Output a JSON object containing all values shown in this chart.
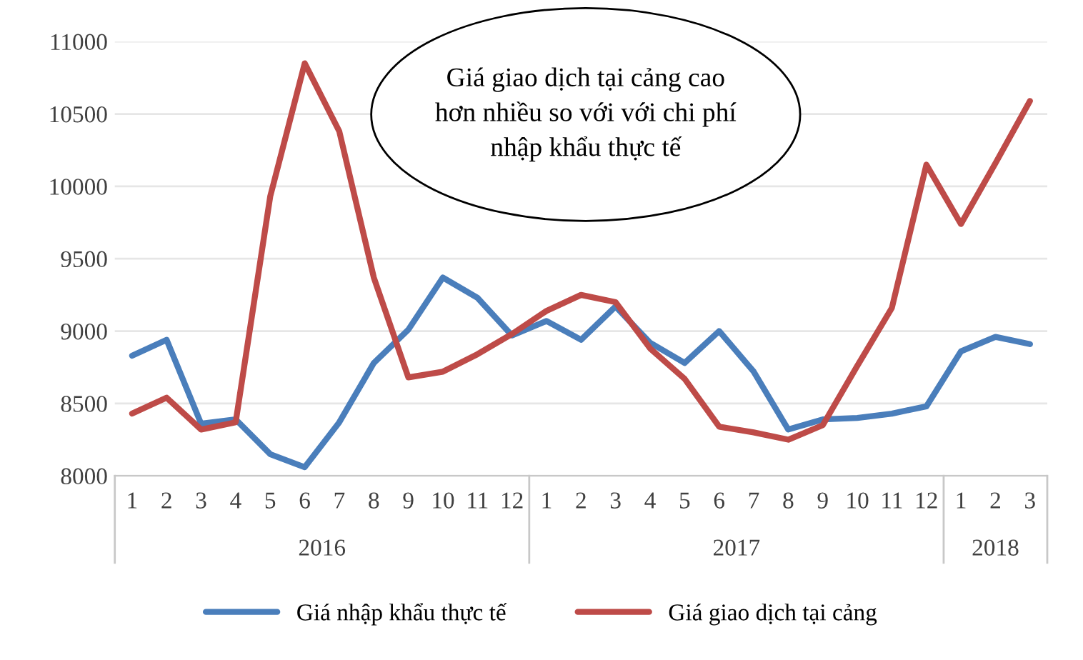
{
  "chart_data": {
    "type": "line",
    "categories": [
      "1",
      "2",
      "3",
      "4",
      "5",
      "6",
      "7",
      "8",
      "9",
      "10",
      "11",
      "12",
      "1",
      "2",
      "3",
      "4",
      "5",
      "6",
      "7",
      "8",
      "9",
      "10",
      "11",
      "12",
      "1",
      "2",
      "3"
    ],
    "series": [
      {
        "name": "Giá nhập khẩu thực tế",
        "color": "#4a7ebb",
        "values": [
          8830,
          8940,
          8360,
          8390,
          8150,
          8060,
          8370,
          8780,
          9010,
          9370,
          9230,
          8970,
          9070,
          8940,
          9170,
          8920,
          8780,
          9000,
          8720,
          8320,
          8390,
          8400,
          8430,
          8480,
          8860,
          8960,
          8910
        ]
      },
      {
        "name": "Giá giao dịch tại cảng",
        "color": "#be4b48",
        "values": [
          8430,
          8540,
          8320,
          8370,
          9930,
          10850,
          10380,
          9370,
          8680,
          8720,
          8840,
          8980,
          9140,
          9250,
          9200,
          8880,
          8670,
          8340,
          8300,
          8250,
          8350,
          8760,
          9160,
          10150,
          9740,
          10160,
          10590
        ]
      }
    ],
    "ylim": [
      8000,
      11000
    ],
    "yticks": [
      8000,
      8500,
      9000,
      9500,
      10000,
      10500,
      11000
    ],
    "grid": "y",
    "legend": "bottom",
    "marker": "none",
    "line_style": "solid",
    "annotations": [
      "Giá giao dịch tại cảng cao\nhơn nhiều so với với chi phí\nnhập khẩu thực tế",
      "2016",
      "2017",
      "2018"
    ]
  }
}
